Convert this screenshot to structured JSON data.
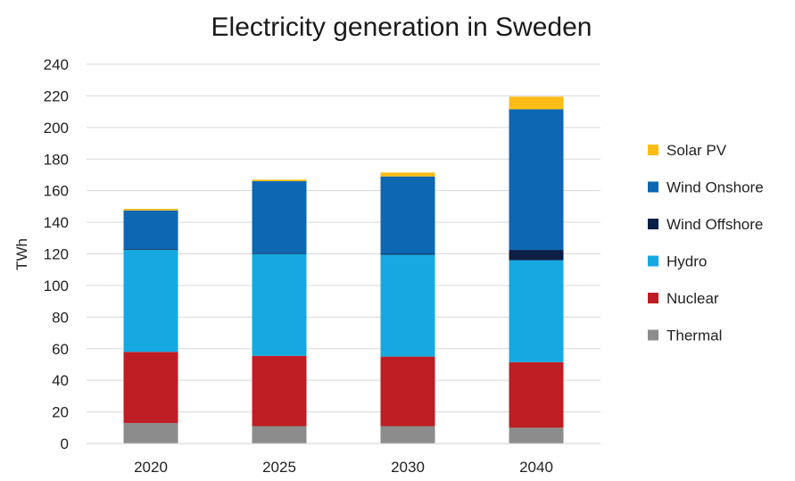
{
  "chart_data": {
    "type": "bar",
    "stacked": true,
    "title": "Electricity generation in Sweden",
    "xlabel": "",
    "ylabel": "TWh",
    "ylim": [
      0,
      240
    ],
    "yticks": [
      0,
      20,
      40,
      60,
      80,
      100,
      120,
      140,
      160,
      180,
      200,
      220,
      240
    ],
    "grid": true,
    "legend_position": "right",
    "categories": [
      "2020",
      "2025",
      "2030",
      "2040"
    ],
    "series": [
      {
        "name": "Thermal",
        "color": "#8c8c8c",
        "values": [
          13,
          11,
          11,
          10
        ]
      },
      {
        "name": "Nuclear",
        "color": "#be1e23",
        "values": [
          45,
          44.5,
          44,
          41.5
        ]
      },
      {
        "name": "Hydro",
        "color": "#16a9e1",
        "values": [
          64.5,
          64.5,
          64.5,
          64.5
        ]
      },
      {
        "name": "Wind Offshore",
        "color": "#0b1e45",
        "values": [
          0.5,
          0.5,
          0.5,
          6.5
        ]
      },
      {
        "name": "Wind Onshore",
        "color": "#0e67b1",
        "values": [
          24.5,
          45.5,
          49,
          89
        ]
      },
      {
        "name": "Solar PV",
        "color": "#fdbd16",
        "values": [
          1,
          1,
          2.5,
          8
        ]
      }
    ]
  }
}
